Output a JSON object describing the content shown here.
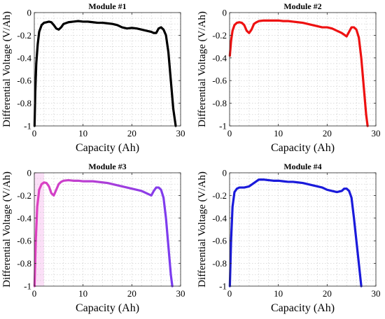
{
  "chart_data": [
    {
      "type": "line",
      "title": "Module #1",
      "xlabel": "Capacity (Ah)",
      "ylabel": "Differential Voltage (V/Ah)",
      "xlim": [
        0,
        30
      ],
      "ylim": [
        -1,
        0
      ],
      "xticks": [
        "0",
        "10",
        "20",
        "30"
      ],
      "yticks": [
        "0",
        "-0.2",
        "-0.4",
        "-0.6",
        "-0.8",
        "-1"
      ],
      "grid": true,
      "color": "#000000",
      "series": [
        {
          "x": [
            0.05,
            0.2,
            0.4,
            0.7,
            1.0,
            1.5,
            2.0,
            2.5,
            3.0,
            3.5,
            4.0,
            4.5,
            5.0,
            5.5,
            6.0,
            7.0,
            8.0,
            9.0,
            10.0,
            11.0,
            12.0,
            13.0,
            14.0,
            15.0,
            16.0,
            17.0,
            18.0,
            19.0,
            20.0,
            21.0,
            22.0,
            23.0,
            24.0,
            24.5,
            25.0,
            25.5,
            26.0,
            26.5,
            27.0,
            27.5,
            28.0,
            28.5,
            29.0
          ],
          "y": [
            -1.0,
            -0.7,
            -0.45,
            -0.28,
            -0.17,
            -0.11,
            -0.09,
            -0.085,
            -0.08,
            -0.085,
            -0.11,
            -0.14,
            -0.15,
            -0.13,
            -0.1,
            -0.085,
            -0.08,
            -0.075,
            -0.08,
            -0.08,
            -0.085,
            -0.09,
            -0.09,
            -0.095,
            -0.1,
            -0.11,
            -0.13,
            -0.14,
            -0.135,
            -0.14,
            -0.15,
            -0.16,
            -0.17,
            -0.18,
            -0.18,
            -0.14,
            -0.13,
            -0.15,
            -0.2,
            -0.35,
            -0.6,
            -0.85,
            -1.0
          ]
        }
      ]
    },
    {
      "type": "line",
      "title": "Module #2",
      "xlabel": "Capacity (Ah)",
      "ylabel": "Differential Voltage (V/Ah)",
      "xlim": [
        0,
        30
      ],
      "ylim": [
        -1,
        0
      ],
      "xticks": [
        "0",
        "10",
        "20",
        "30"
      ],
      "yticks": [
        "0",
        "-0.2",
        "-0.4",
        "-0.6",
        "-0.8",
        "-1"
      ],
      "grid": true,
      "color": "#ee1111",
      "series": [
        {
          "x": [
            0.05,
            0.3,
            0.6,
            1.0,
            1.5,
            2.0,
            2.5,
            3.0,
            3.5,
            4.0,
            4.5,
            5.0,
            5.5,
            6.0,
            7.0,
            8.0,
            9.0,
            10.0,
            11.0,
            12.0,
            13.0,
            14.0,
            15.0,
            16.0,
            17.0,
            18.0,
            19.0,
            20.0,
            21.0,
            22.0,
            23.0,
            24.0,
            24.5,
            25.0,
            25.5,
            26.0,
            26.5,
            27.0,
            27.5,
            28.0,
            28.3
          ],
          "y": [
            -0.38,
            -0.25,
            -0.16,
            -0.11,
            -0.09,
            -0.085,
            -0.09,
            -0.11,
            -0.16,
            -0.18,
            -0.15,
            -0.1,
            -0.085,
            -0.075,
            -0.07,
            -0.07,
            -0.07,
            -0.07,
            -0.075,
            -0.075,
            -0.08,
            -0.085,
            -0.09,
            -0.1,
            -0.11,
            -0.12,
            -0.13,
            -0.13,
            -0.14,
            -0.16,
            -0.18,
            -0.21,
            -0.17,
            -0.13,
            -0.13,
            -0.15,
            -0.22,
            -0.4,
            -0.65,
            -0.9,
            -1.0
          ]
        }
      ]
    },
    {
      "type": "line",
      "title": "Module #3",
      "xlabel": "Capacity (Ah)",
      "ylabel": "Differential Voltage (V/Ah)",
      "xlim": [
        0,
        30
      ],
      "ylim": [
        -1,
        0
      ],
      "xticks": [
        "0",
        "10",
        "20",
        "30"
      ],
      "yticks": [
        "0",
        "-0.2",
        "-0.4",
        "-0.6",
        "-0.8",
        "-1"
      ],
      "grid": true,
      "color": "#a855e8",
      "color_start": "#e040c0",
      "color_end": "#7a3cf0",
      "band_color": "#f7b8ee",
      "series": [
        {
          "x": [
            0.05,
            0.3,
            0.6,
            1.0,
            1.5,
            2.0,
            2.5,
            3.0,
            3.5,
            4.0,
            4.5,
            5.0,
            5.5,
            6.0,
            7.0,
            8.0,
            9.0,
            10.0,
            11.0,
            12.0,
            13.0,
            14.0,
            15.0,
            16.0,
            17.0,
            18.0,
            19.0,
            20.0,
            21.0,
            22.0,
            23.0,
            24.0,
            24.5,
            25.0,
            25.5,
            26.0,
            26.5,
            27.0,
            27.5,
            28.0,
            28.3
          ],
          "y": [
            -1.0,
            -0.6,
            -0.3,
            -0.15,
            -0.1,
            -0.085,
            -0.09,
            -0.12,
            -0.18,
            -0.2,
            -0.15,
            -0.1,
            -0.08,
            -0.07,
            -0.065,
            -0.07,
            -0.07,
            -0.075,
            -0.075,
            -0.075,
            -0.08,
            -0.085,
            -0.09,
            -0.1,
            -0.11,
            -0.12,
            -0.13,
            -0.14,
            -0.15,
            -0.16,
            -0.18,
            -0.2,
            -0.16,
            -0.13,
            -0.13,
            -0.15,
            -0.22,
            -0.4,
            -0.65,
            -0.9,
            -1.0
          ]
        }
      ]
    },
    {
      "type": "line",
      "title": "Module #4",
      "xlabel": "Capacity (Ah)",
      "ylabel": "Differential Voltage (V/Ah)",
      "xlim": [
        0,
        30
      ],
      "ylim": [
        -1,
        0
      ],
      "xticks": [
        "0",
        "10",
        "20",
        "30"
      ],
      "yticks": [
        "0",
        "-0.2",
        "-0.4",
        "-0.6",
        "-0.8",
        "-1"
      ],
      "grid": true,
      "color": "#1a1adb",
      "series": [
        {
          "x": [
            0.05,
            0.3,
            0.6,
            1.0,
            1.5,
            2.0,
            3.0,
            4.0,
            5.0,
            6.0,
            7.0,
            8.0,
            9.0,
            10.0,
            11.0,
            12.0,
            13.0,
            14.0,
            15.0,
            16.0,
            17.0,
            18.0,
            19.0,
            20.0,
            21.0,
            22.0,
            23.0,
            23.5,
            24.0,
            24.5,
            25.0,
            25.5,
            26.0,
            26.5,
            27.0
          ],
          "y": [
            -1.0,
            -0.6,
            -0.3,
            -0.17,
            -0.14,
            -0.13,
            -0.13,
            -0.12,
            -0.09,
            -0.06,
            -0.06,
            -0.065,
            -0.07,
            -0.07,
            -0.075,
            -0.08,
            -0.08,
            -0.085,
            -0.09,
            -0.1,
            -0.11,
            -0.12,
            -0.13,
            -0.15,
            -0.16,
            -0.17,
            -0.16,
            -0.14,
            -0.14,
            -0.16,
            -0.22,
            -0.4,
            -0.6,
            -0.8,
            -1.0
          ]
        }
      ]
    }
  ]
}
